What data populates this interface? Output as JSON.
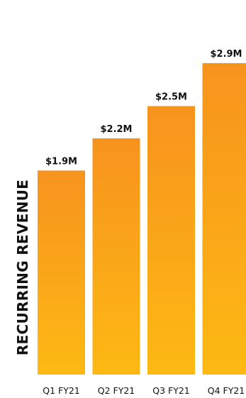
{
  "chart_data": {
    "type": "bar",
    "title": "",
    "xlabel": "",
    "ylabel": "RECURRING REVENUE",
    "categories": [
      "Q1 FY21",
      "Q2 FY21",
      "Q3 FY21",
      "Q4 FY21"
    ],
    "values": [
      1.9,
      2.2,
      2.5,
      2.9
    ],
    "data_labels": [
      "$1.9M",
      "$2.2M",
      "$2.5M",
      "$2.9M"
    ],
    "unit": "$M",
    "ylim": [
      0,
      2.9
    ],
    "grid": false,
    "legend": "none",
    "colors": {
      "bar_top": "#F7931E",
      "bar_bottom": "#FDB913",
      "text": "#111111"
    }
  }
}
